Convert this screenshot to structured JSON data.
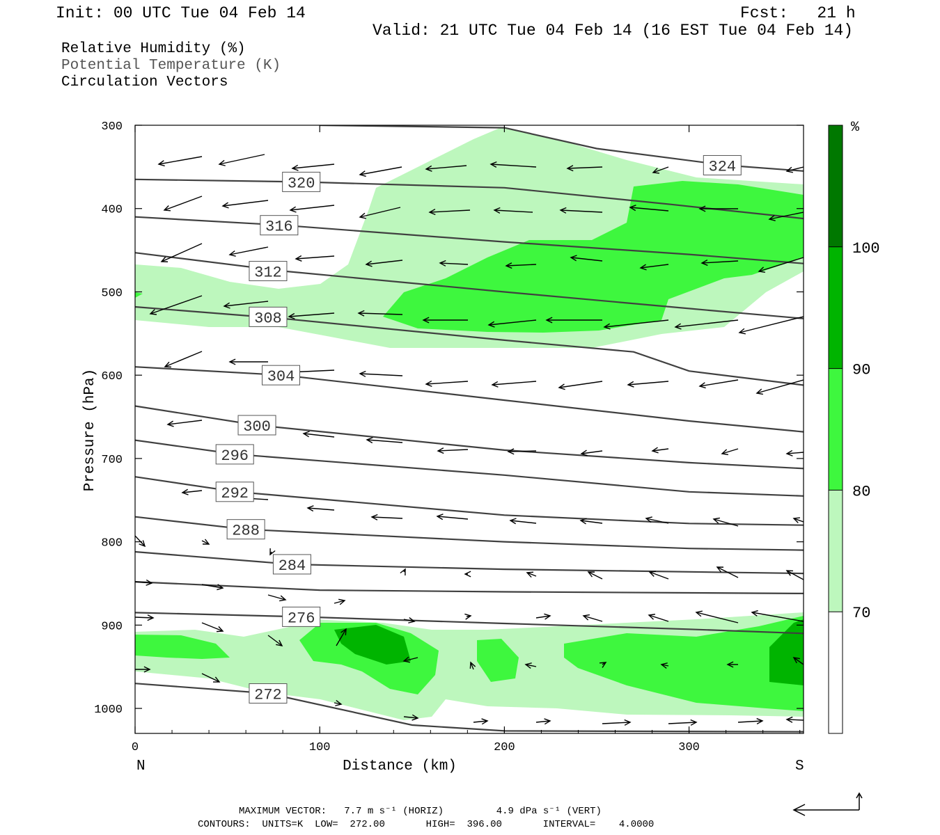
{
  "header": {
    "init": "Init: 00 UTC Tue 04 Feb 14",
    "fcst": "Fcst:   21 h",
    "valid": "Valid: 21 UTC Tue 04 Feb 14 (16 EST Tue 04 Feb 14)"
  },
  "legend": {
    "rh": "Relative Humidity (%)",
    "theta": "Potential Temperature (K)",
    "vectors": "Circulation Vectors"
  },
  "footer": {
    "max_vector": "MAXIMUM VECTOR:   7.7 m s⁻¹ (HORIZ)         4.9 dPa s⁻¹ (VERT)",
    "contours": "CONTOURS:  UNITS=K  LOW=  272.00       HIGH=  396.00       INTERVAL=    4.0000"
  },
  "colors": {
    "rh_70_80": "#bdf7bd",
    "rh_80_90": "#3ef73e",
    "rh_90_100": "#00b400",
    "rh_100": "#007800",
    "contour": "#404040"
  },
  "chart_data": {
    "type": "cross-section",
    "xlabel": "Distance (km)",
    "ylabel": "Pressure (hPa)",
    "x_ticks": [
      0,
      100,
      200,
      300
    ],
    "x_tick_labels": [
      "0",
      "100",
      "200",
      "300"
    ],
    "xlim": [
      0,
      362
    ],
    "y_ticks": [
      300,
      400,
      500,
      600,
      700,
      800,
      900,
      1000
    ],
    "y_tick_labels": [
      "300",
      "400",
      "500",
      "600",
      "700",
      "800",
      "900",
      "1000"
    ],
    "ylim": [
      300,
      1030
    ],
    "left_end_label": "N",
    "right_end_label": "S",
    "colorbar": {
      "unit": "%",
      "levels": [
        70,
        80,
        90,
        100
      ],
      "level_labels": [
        "70",
        "80",
        "90",
        "100"
      ],
      "colors": [
        "#ffffff",
        "#bdf7bd",
        "#3ef73e",
        "#00b400",
        "#007800"
      ]
    },
    "theta_contours": [
      {
        "value": 324,
        "label": "324",
        "label_at": [
          318,
          348
        ],
        "points": [
          [
            100,
            300
          ],
          [
            200,
            303
          ],
          [
            250,
            328
          ],
          [
            320,
            348
          ],
          [
            362,
            355
          ]
        ]
      },
      {
        "value": 320,
        "label": "320",
        "label_at": [
          90,
          368
        ],
        "points": [
          [
            0,
            365
          ],
          [
            90,
            368
          ],
          [
            200,
            375
          ],
          [
            290,
            395
          ],
          [
            362,
            412
          ]
        ]
      },
      {
        "value": 316,
        "label": "316",
        "label_at": [
          78,
          420
        ],
        "points": [
          [
            0,
            410
          ],
          [
            80,
            420
          ],
          [
            200,
            440
          ],
          [
            300,
            455
          ],
          [
            362,
            466
          ]
        ]
      },
      {
        "value": 312,
        "label": "312",
        "label_at": [
          72,
          475
        ],
        "points": [
          [
            0,
            453
          ],
          [
            80,
            475
          ],
          [
            200,
            500
          ],
          [
            300,
            520
          ],
          [
            362,
            532
          ]
        ]
      },
      {
        "value": 308,
        "label": "308",
        "label_at": [
          72,
          530
        ],
        "points": [
          [
            0,
            518
          ],
          [
            80,
            532
          ],
          [
            200,
            558
          ],
          [
            270,
            572
          ],
          [
            300,
            595
          ],
          [
            362,
            612
          ]
        ]
      },
      {
        "value": 304,
        "label": "304",
        "label_at": [
          79,
          600
        ],
        "points": [
          [
            0,
            590
          ],
          [
            80,
            600
          ],
          [
            200,
            630
          ],
          [
            300,
            655
          ],
          [
            362,
            668
          ]
        ]
      },
      {
        "value": 300,
        "label": "300",
        "label_at": [
          66,
          660
        ],
        "points": [
          [
            0,
            637
          ],
          [
            66,
            660
          ],
          [
            200,
            690
          ],
          [
            300,
            705
          ],
          [
            362,
            712
          ]
        ]
      },
      {
        "value": 296,
        "label": "296",
        "label_at": [
          54,
          695
        ],
        "points": [
          [
            0,
            678
          ],
          [
            55,
            695
          ],
          [
            200,
            720
          ],
          [
            300,
            740
          ],
          [
            362,
            745
          ]
        ]
      },
      {
        "value": 292,
        "label": "292",
        "label_at": [
          54,
          740
        ],
        "points": [
          [
            0,
            722
          ],
          [
            55,
            740
          ],
          [
            200,
            768
          ],
          [
            300,
            778
          ],
          [
            362,
            780
          ]
        ]
      },
      {
        "value": 288,
        "label": "288",
        "label_at": [
          60,
          785
        ],
        "points": [
          [
            0,
            770
          ],
          [
            60,
            785
          ],
          [
            200,
            800
          ],
          [
            300,
            808
          ],
          [
            362,
            810
          ]
        ]
      },
      {
        "value": 284,
        "label": "284",
        "label_at": [
          85,
          827
        ],
        "points": [
          [
            0,
            812
          ],
          [
            85,
            827
          ],
          [
            200,
            833
          ],
          [
            362,
            838
          ]
        ]
      },
      {
        "value": 280,
        "label": "",
        "label_at": null,
        "points": [
          [
            0,
            848
          ],
          [
            100,
            858
          ],
          [
            200,
            860
          ],
          [
            362,
            862
          ]
        ]
      },
      {
        "value": 276,
        "label": "276",
        "label_at": [
          90,
          890
        ],
        "points": [
          [
            0,
            885
          ],
          [
            90,
            890
          ],
          [
            200,
            898
          ],
          [
            300,
            905
          ],
          [
            362,
            910
          ]
        ]
      },
      {
        "value": 272,
        "label": "272",
        "label_at": [
          72,
          982
        ],
        "points": [
          [
            0,
            970
          ],
          [
            72,
            982
          ],
          [
            150,
            1020
          ],
          [
            200,
            1027
          ],
          [
            362,
            1028
          ]
        ]
      }
    ]
  }
}
